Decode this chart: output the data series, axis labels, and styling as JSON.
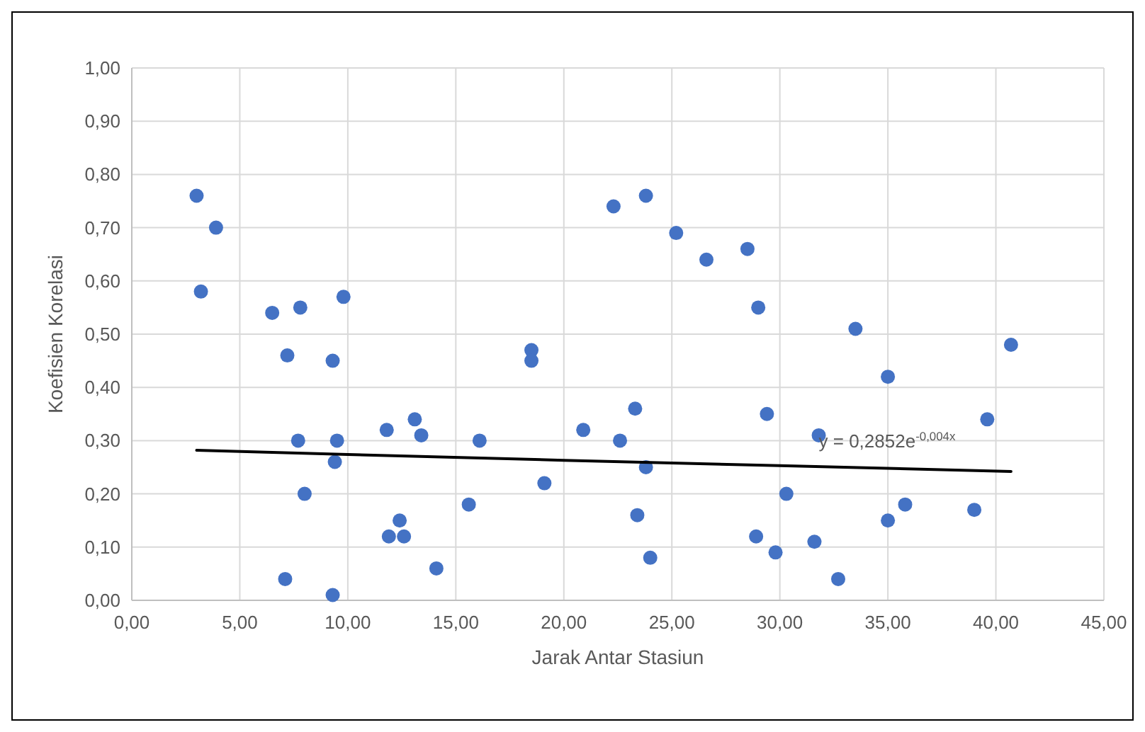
{
  "chart_data": {
    "type": "scatter",
    "xlabel": "Jarak Antar Stasiun",
    "ylabel": "Koefisien Korelasi",
    "grid": true,
    "xlim": [
      0,
      45
    ],
    "ylim": [
      0,
      1
    ],
    "xticks": [
      {
        "value": 0,
        "label": "0,00"
      },
      {
        "value": 5,
        "label": "5,00"
      },
      {
        "value": 10,
        "label": "10,00"
      },
      {
        "value": 15,
        "label": "15,00"
      },
      {
        "value": 20,
        "label": "20,00"
      },
      {
        "value": 25,
        "label": "25,00"
      },
      {
        "value": 30,
        "label": "30,00"
      },
      {
        "value": 35,
        "label": "35,00"
      },
      {
        "value": 40,
        "label": "40,00"
      },
      {
        "value": 45,
        "label": "45,00"
      }
    ],
    "yticks": [
      {
        "value": 0,
        "label": "0,00"
      },
      {
        "value": 0.1,
        "label": "0,10"
      },
      {
        "value": 0.2,
        "label": "0,20"
      },
      {
        "value": 0.3,
        "label": "0,30"
      },
      {
        "value": 0.4,
        "label": "0,40"
      },
      {
        "value": 0.5,
        "label": "0,50"
      },
      {
        "value": 0.6,
        "label": "0,60"
      },
      {
        "value": 0.7,
        "label": "0,70"
      },
      {
        "value": 0.8,
        "label": "0,80"
      },
      {
        "value": 0.9,
        "label": "0,90"
      },
      {
        "value": 1,
        "label": "1,00"
      }
    ],
    "annotations": [
      {
        "text": "y = 0,2852e$^{-0,004x}$",
        "x": 31.8,
        "y": 0.3
      }
    ],
    "series": [
      {
        "marker": "circle",
        "color": "#4472c4",
        "x": [
          3.0,
          3.2,
          3.9,
          6.5,
          7.2,
          7.8,
          7.7,
          8.0,
          7.1,
          9.3,
          9.4,
          9.5,
          9.8,
          9.3,
          11.8,
          11.9,
          12.4,
          12.6,
          13.1,
          13.4,
          14.1,
          15.6,
          16.1,
          18.5,
          18.5,
          19.1,
          20.9,
          22.3,
          22.6,
          23.3,
          23.4,
          23.8,
          23.8,
          24.0,
          25.2,
          26.6,
          28.5,
          28.9,
          29.0,
          29.4,
          29.8,
          30.3,
          31.6,
          31.8,
          32.7,
          33.5,
          35.0,
          35.0,
          35.8,
          39.0,
          39.6,
          40.7
        ],
        "values": [
          0.76,
          0.58,
          0.7,
          0.54,
          0.46,
          0.55,
          0.3,
          0.2,
          0.04,
          0.45,
          0.26,
          0.3,
          0.57,
          0.01,
          0.32,
          0.12,
          0.15,
          0.12,
          0.34,
          0.31,
          0.06,
          0.18,
          0.3,
          0.47,
          0.45,
          0.22,
          0.32,
          0.74,
          0.3,
          0.36,
          0.16,
          0.76,
          0.25,
          0.08,
          0.69,
          0.64,
          0.66,
          0.12,
          0.55,
          0.35,
          0.09,
          0.2,
          0.11,
          0.31,
          0.04,
          0.51,
          0.42,
          0.15,
          0.18,
          0.17,
          0.34,
          0.48
        ]
      },
      {
        "type": "line",
        "color": "#000000",
        "x": [
          3,
          10,
          20,
          30,
          40.7
        ],
        "values": [
          0.282,
          0.274,
          0.263,
          0.253,
          0.242
        ]
      }
    ]
  }
}
